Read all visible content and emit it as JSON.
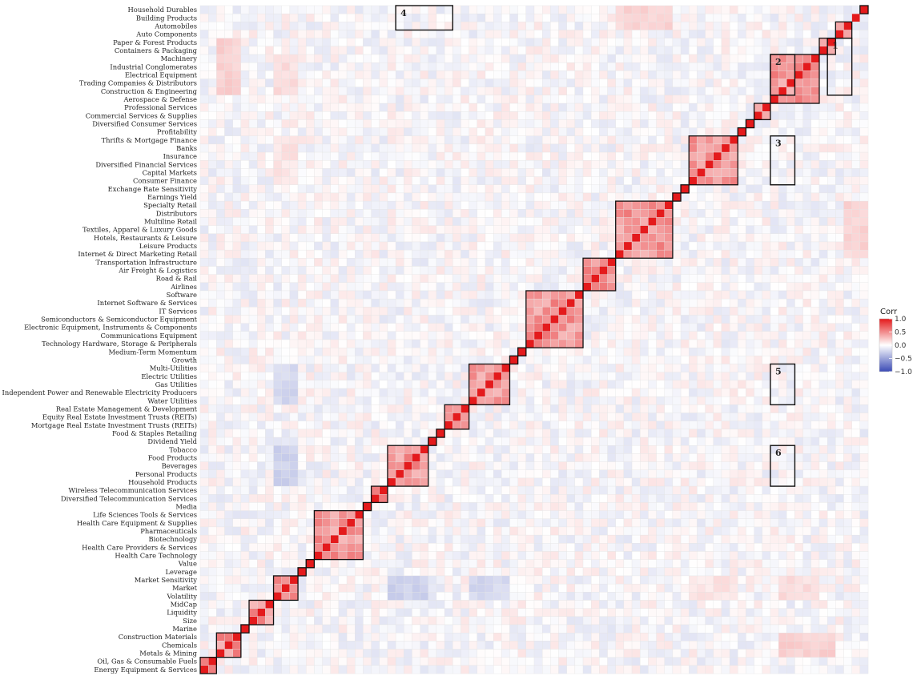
{
  "chart_data": {
    "type": "heatmap",
    "title": "",
    "legend": {
      "title": "Corr",
      "ticks": [
        1.0,
        0.5,
        0.0,
        -0.5,
        -1.0
      ],
      "tick_labels": [
        "1.0",
        "0.5",
        "0.0",
        "−0.5",
        "−1.0"
      ],
      "placement": "right",
      "colors": {
        "positive": "#e41a1c",
        "zero": "#ffffff",
        "negative": "#3a4ab5"
      }
    },
    "order": "top-to-bottom rows, left-to-right columns; column k corresponds to row label k counted from the bottom",
    "labels": [
      "Household Durables",
      "Building Products",
      "Automobiles",
      "Auto Components",
      "Paper & Forest Products",
      "Containers & Packaging",
      "Machinery",
      "Industrial Conglomerates",
      "Electrical Equipment",
      "Trading Companies & Distributors",
      "Construction & Engineering",
      "Aerospace & Defense",
      "Professional Services",
      "Commercial Services & Supplies",
      "Diversified Consumer Services",
      "Profitability",
      "Thrifts & Mortgage Finance",
      "Banks",
      "Insurance",
      "Diversified Financial Services",
      "Capital Markets",
      "Consumer Finance",
      "Exchange Rate Sensitivity",
      "Earnings Yield",
      "Specialty Retail",
      "Distributors",
      "Multiline Retail",
      "Textiles, Apparel & Luxury Goods",
      "Hotels, Restaurants & Leisure",
      "Leisure Products",
      "Internet & Direct Marketing Retail",
      "Transportation Infrastructure",
      "Air Freight & Logistics",
      "Road & Rail",
      "Airlines",
      "Software",
      "Internet Software & Services",
      "IT Services",
      "Semiconductors & Semiconductor Equipment",
      "Electronic Equipment, Instruments & Components",
      "Communications Equipment",
      "Technology Hardware, Storage & Peripherals",
      "Medium-Term Momentum",
      "Growth",
      "Multi-Utilities",
      "Electric Utilities",
      "Gas Utilities",
      "Independent Power and Renewable Electricity Producers",
      "Water Utilities",
      "Real Estate Management & Development",
      "Equity Real Estate Investment Trusts (REITs)",
      "Mortgage Real Estate Investment Trusts (REITs)",
      "Food & Staples Retailing",
      "Dividend Yield",
      "Tobacco",
      "Food Products",
      "Beverages",
      "Personal Products",
      "Household Products",
      "Wireless Telecommunication Services",
      "Diversified Telecommunication Services",
      "Media",
      "Life Sciences Tools & Services",
      "Health Care Equipment & Supplies",
      "Pharmaceuticals",
      "Biotechnology",
      "Health Care Providers & Services",
      "Health Care Technology",
      "Value",
      "Leverage",
      "Market Sensitivity",
      "Market",
      "Volatility",
      "MidCap",
      "Liquidity",
      "Size",
      "Marine",
      "Construction Materials",
      "Chemicals",
      "Metals & Mining",
      "Oil, Gas & Consumable Fuels",
      "Energy Equipment & Services"
    ],
    "clusters": [
      {
        "rows": [
          0,
          0
        ]
      },
      {
        "rows": [
          2,
          3
        ]
      },
      {
        "rows": [
          4,
          5
        ]
      },
      {
        "rows": [
          6,
          11
        ]
      },
      {
        "rows": [
          12,
          13
        ]
      },
      {
        "rows": [
          14,
          14
        ]
      },
      {
        "rows": [
          15,
          15
        ]
      },
      {
        "rows": [
          16,
          21
        ]
      },
      {
        "rows": [
          22,
          22
        ]
      },
      {
        "rows": [
          23,
          23
        ]
      },
      {
        "rows": [
          24,
          30
        ]
      },
      {
        "rows": [
          31,
          34
        ]
      },
      {
        "rows": [
          35,
          41
        ]
      },
      {
        "rows": [
          42,
          42
        ]
      },
      {
        "rows": [
          43,
          43
        ]
      },
      {
        "rows": [
          44,
          48
        ]
      },
      {
        "rows": [
          49,
          51
        ]
      },
      {
        "rows": [
          52,
          52
        ]
      },
      {
        "rows": [
          53,
          53
        ]
      },
      {
        "rows": [
          54,
          58
        ]
      },
      {
        "rows": [
          59,
          60
        ]
      },
      {
        "rows": [
          61,
          61
        ]
      },
      {
        "rows": [
          62,
          67
        ]
      },
      {
        "rows": [
          68,
          68
        ]
      },
      {
        "rows": [
          69,
          69
        ]
      },
      {
        "rows": [
          70,
          72
        ]
      },
      {
        "rows": [
          73,
          75
        ]
      },
      {
        "rows": [
          76,
          76
        ]
      },
      {
        "rows": [
          77,
          79
        ]
      },
      {
        "rows": [
          80,
          81
        ]
      }
    ],
    "annotations": [
      {
        "label": "1",
        "rows": [
          4,
          10
        ],
        "cols": [
          77,
          79
        ],
        "mean_corr": 0.2
      },
      {
        "label": "2",
        "rows": [
          6,
          10
        ],
        "cols": [
          70,
          72
        ],
        "mean_corr": 0.15
      },
      {
        "label": "3",
        "rows": [
          16,
          21
        ],
        "cols": [
          70,
          72
        ],
        "mean_corr": 0.12
      },
      {
        "label": "4",
        "rows": [
          0,
          2
        ],
        "cols": [
          24,
          30
        ],
        "mean_corr": 0.18
      },
      {
        "label": "5",
        "rows": [
          44,
          48
        ],
        "cols": [
          70,
          72
        ],
        "mean_corr": -0.22
      },
      {
        "label": "6",
        "rows": [
          54,
          58
        ],
        "cols": [
          70,
          72
        ],
        "mean_corr": -0.25
      }
    ],
    "in_cluster_corr": 0.45,
    "off_cluster_range": [
      -0.15,
      0.12
    ]
  }
}
